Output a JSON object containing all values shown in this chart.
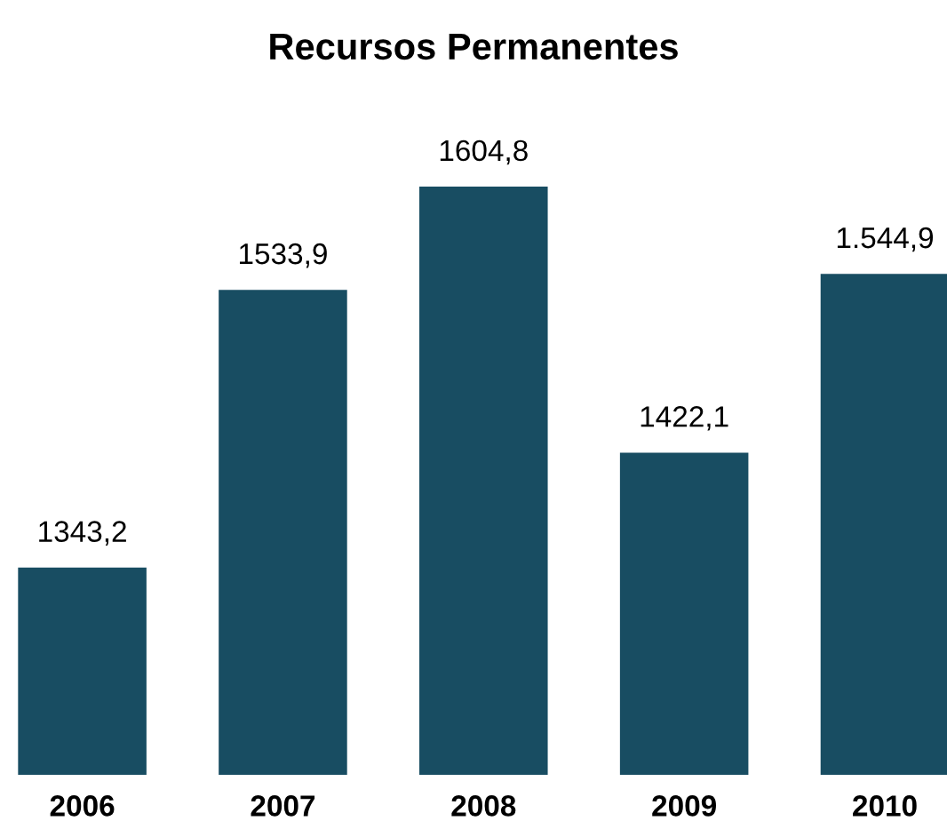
{
  "chart_data": {
    "type": "bar",
    "title": "Recursos Permanentes",
    "categories": [
      "2006",
      "2007",
      "2008",
      "2009",
      "2010"
    ],
    "values": [
      1343.2,
      1533.9,
      1604.8,
      1422.1,
      1544.9
    ],
    "value_labels": [
      "1343,2",
      "1533,9",
      "1604,8",
      "1422,1",
      "1.544,9"
    ],
    "color": "#184d62",
    "tick_labels": "x",
    "grid": false,
    "legend": false
  }
}
